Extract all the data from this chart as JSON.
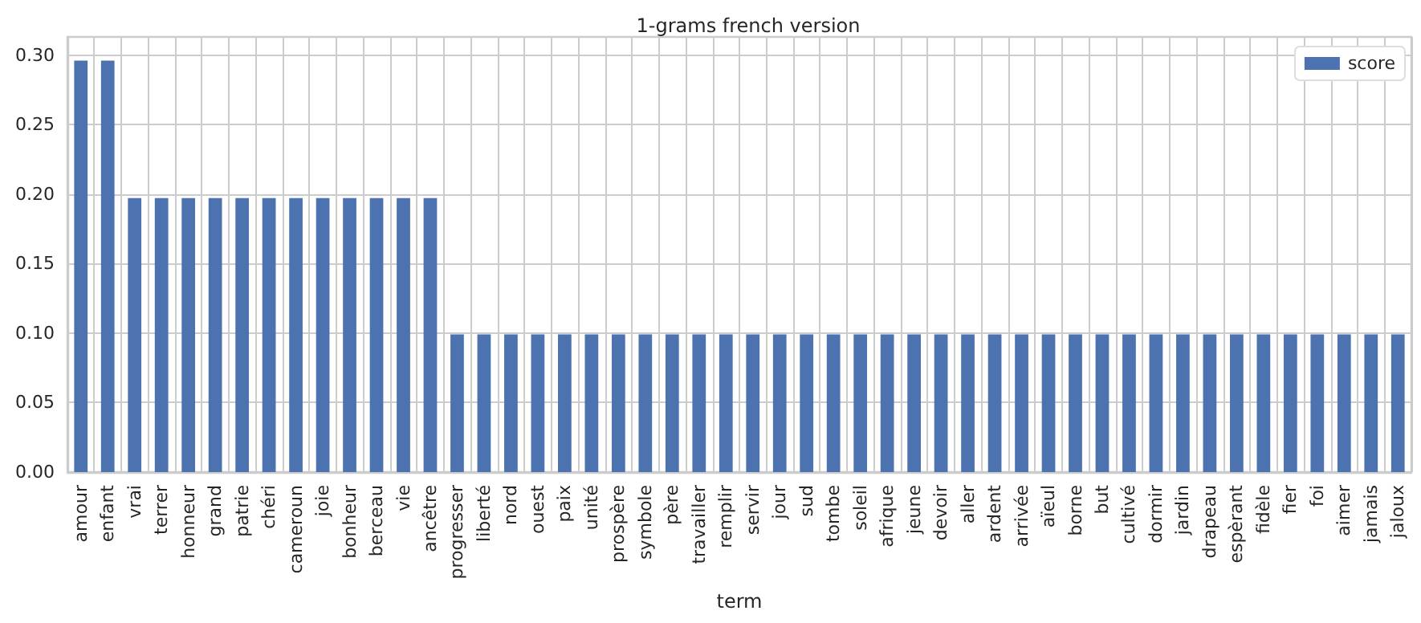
{
  "chart_data": {
    "type": "bar",
    "title": "1-grams french version",
    "xlabel": "term",
    "categories": [
      "amour",
      "enfant",
      "vrai",
      "terrer",
      "honneur",
      "grand",
      "patrie",
      "chéri",
      "cameroun",
      "joie",
      "bonheur",
      "berceau",
      "vie",
      "ancêtre",
      "progresser",
      "liberté",
      "nord",
      "ouest",
      "paix",
      "unité",
      "prospère",
      "symbole",
      "père",
      "travailler",
      "remplir",
      "servir",
      "jour",
      "sud",
      "tombe",
      "soleil",
      "afrique",
      "jeune",
      "devoir",
      "aller",
      "ardent",
      "arrivée",
      "aïeul",
      "borne",
      "but",
      "cultivé",
      "dormir",
      "jardin",
      "drapeau",
      "espèrant",
      "fidèle",
      "fier",
      "foi",
      "aimer",
      "jamais",
      "jaloux"
    ],
    "series": [
      {
        "name": "score",
        "color": "#4c72b0",
        "values": [
          0.296,
          0.296,
          0.197,
          0.197,
          0.197,
          0.197,
          0.197,
          0.197,
          0.197,
          0.197,
          0.197,
          0.197,
          0.197,
          0.197,
          0.099,
          0.099,
          0.099,
          0.099,
          0.099,
          0.099,
          0.099,
          0.099,
          0.099,
          0.099,
          0.099,
          0.099,
          0.099,
          0.099,
          0.099,
          0.099,
          0.099,
          0.099,
          0.099,
          0.099,
          0.099,
          0.099,
          0.099,
          0.099,
          0.099,
          0.099,
          0.099,
          0.099,
          0.099,
          0.099,
          0.099,
          0.099,
          0.099,
          0.099,
          0.099,
          0.099
        ]
      }
    ],
    "ylim": [
      0,
      0.313
    ],
    "yticks": [
      {
        "value": 0,
        "label": "0.00"
      },
      {
        "value": 0.05,
        "label": "0.05"
      },
      {
        "value": 0.1,
        "label": "0.10"
      },
      {
        "value": 0.15,
        "label": "0.15"
      },
      {
        "value": 0.2,
        "label": "0.20"
      },
      {
        "value": 0.25,
        "label": "0.25"
      },
      {
        "value": 0.3,
        "label": "0.30"
      }
    ],
    "grid": true,
    "legend": "top right"
  }
}
